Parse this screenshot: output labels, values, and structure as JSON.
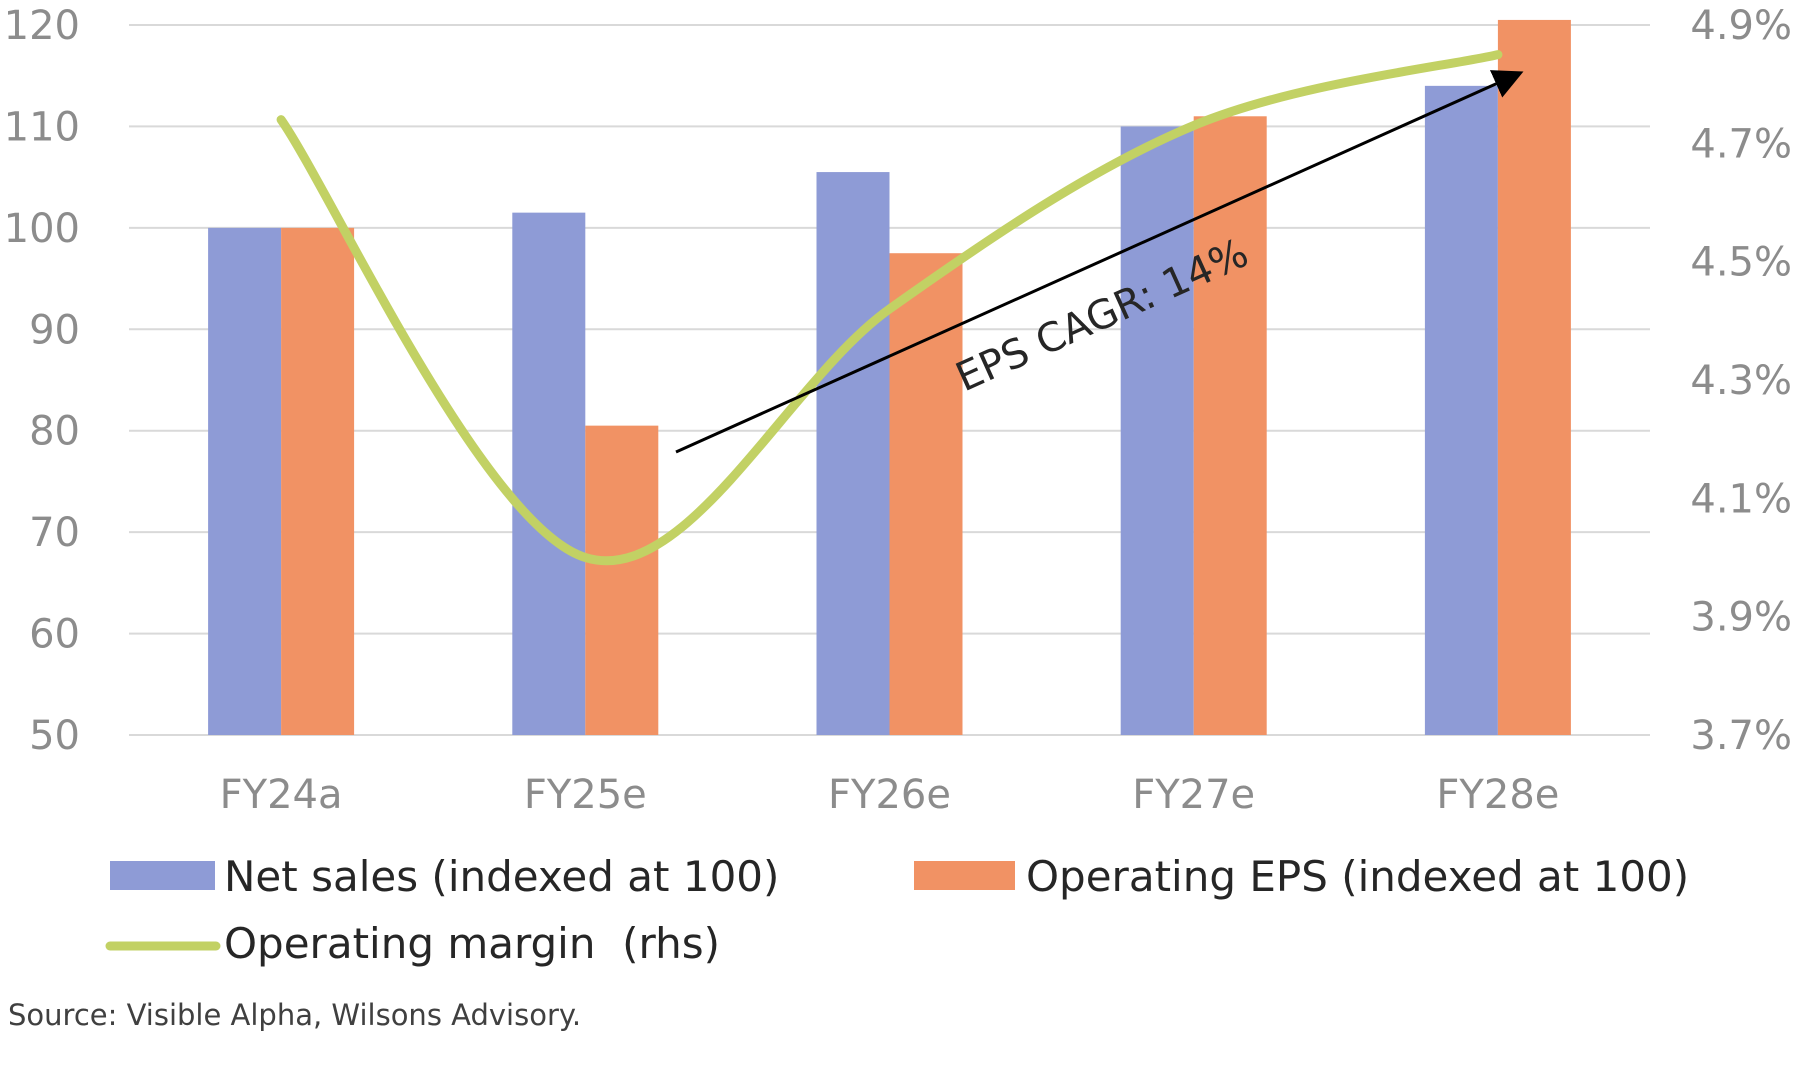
{
  "chart_data": {
    "type": "bar",
    "categories": [
      "FY24a",
      "FY25e",
      "FY26e",
      "FY27e",
      "FY28e"
    ],
    "series": [
      {
        "name": "Net sales (indexed at 100)",
        "kind": "bar",
        "axis": "left",
        "color": "#8e9bd6",
        "values": [
          100,
          101.5,
          105.5,
          110,
          114
        ]
      },
      {
        "name": "Operating EPS (indexed at 100)",
        "kind": "bar",
        "axis": "left",
        "color": "#f19264",
        "values": [
          100,
          80.5,
          97.5,
          111,
          120.5
        ]
      },
      {
        "name": "Operating margin  (rhs)",
        "kind": "line",
        "axis": "right",
        "color": "#c2d164",
        "values": [
          4.74,
          4.0,
          4.42,
          4.73,
          4.85
        ]
      }
    ],
    "left_axis": {
      "min": 50,
      "max": 120,
      "ticks": [
        "50",
        "60",
        "70",
        "80",
        "90",
        "100",
        "110",
        "120"
      ]
    },
    "right_axis": {
      "min": 3.7,
      "max": 4.9,
      "ticks": [
        "3.7%",
        "3.9%",
        "4.1%",
        "4.3%",
        "4.5%",
        "4.7%",
        "4.9%"
      ]
    },
    "grid": true,
    "legend_position": "bottom",
    "annotation": {
      "text": "EPS CAGR: 14%"
    },
    "source": "Source: Visible Alpha, Wilsons Advisory."
  }
}
